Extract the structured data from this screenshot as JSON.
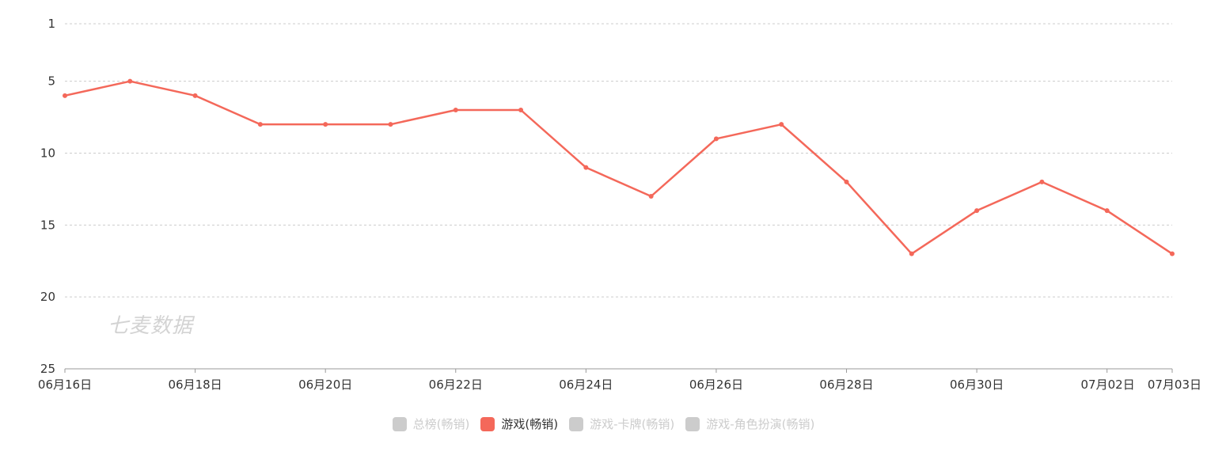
{
  "chart_data": {
    "type": "line",
    "title": "",
    "xlabel": "",
    "ylabel": "",
    "y_inverted": true,
    "ylim": [
      1,
      25
    ],
    "y_ticks": [
      1,
      5,
      10,
      15,
      20,
      25
    ],
    "x": [
      "06月16日",
      "06月17日",
      "06月18日",
      "06月19日",
      "06月20日",
      "06月21日",
      "06月22日",
      "06月23日",
      "06月24日",
      "06月25日",
      "06月26日",
      "06月27日",
      "06月28日",
      "06月29日",
      "06月30日",
      "07月01日",
      "07月02日",
      "07月03日"
    ],
    "x_tick_labels": [
      "06月16日",
      "06月18日",
      "06月20日",
      "06月22日",
      "06月24日",
      "06月26日",
      "06月28日",
      "06月30日",
      "07月02日",
      "07月03日"
    ],
    "series": [
      {
        "name": "游戏(畅销)",
        "color": "#f4685a",
        "values": [
          6,
          5,
          6,
          8,
          8,
          8,
          7,
          7,
          11,
          13,
          9,
          8,
          12,
          17,
          14,
          12,
          14,
          17
        ]
      }
    ],
    "grid": true,
    "legend_position": "bottom-center"
  },
  "legend": [
    {
      "label": "总榜(畅销)",
      "active": false,
      "color": "#cccccc"
    },
    {
      "label": "游戏(畅销)",
      "active": true,
      "color": "#f4685a"
    },
    {
      "label": "游戏-卡牌(畅销)",
      "active": false,
      "color": "#cccccc"
    },
    {
      "label": "游戏-角色扮演(畅销)",
      "active": false,
      "color": "#cccccc"
    }
  ],
  "watermark": "七麦数据",
  "colors": {
    "inactive_text": "#cccccc",
    "active_text": "#333333",
    "grid": "#cccccc",
    "axis": "#999999"
  }
}
